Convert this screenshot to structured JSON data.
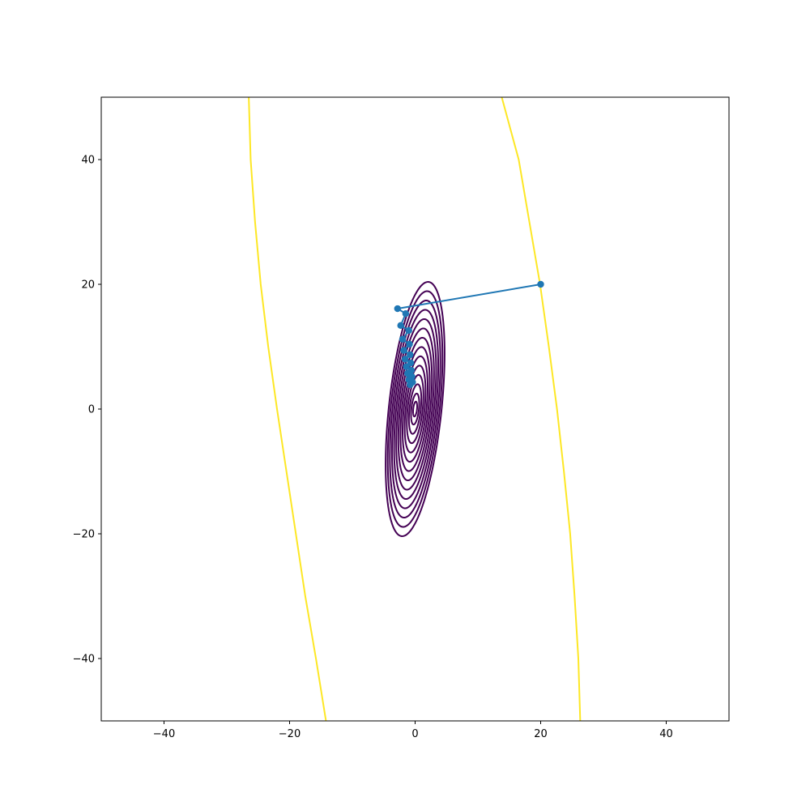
{
  "chart_data": {
    "type": "line",
    "title": "",
    "xlabel": "",
    "ylabel": "",
    "xlim": [
      -50,
      50
    ],
    "ylim": [
      -50,
      50
    ],
    "grid": false,
    "legend": "none",
    "x_ticks": [
      -40,
      -20,
      0,
      20,
      40
    ],
    "y_ticks": [
      -40,
      -20,
      0,
      20,
      40
    ],
    "x_tick_labels": [
      "−40",
      "−20",
      "0",
      "20",
      "40"
    ],
    "y_tick_labels": [
      "−40",
      "−20",
      "0",
      "20",
      "40"
    ],
    "colors": {
      "path": "#1f77b4",
      "inner_contours": "#440154",
      "outer_contour": "#fde725",
      "axes": "#000000"
    },
    "contours": {
      "center": [
        0,
        0
      ],
      "inner_levels_semi_axes": [
        [
          4.2,
          20.5
        ],
        [
          3.9,
          19.0
        ],
        [
          3.6,
          17.5
        ],
        [
          3.3,
          16.0
        ],
        [
          3.0,
          14.5
        ],
        [
          2.7,
          13.0
        ],
        [
          2.4,
          11.5
        ],
        [
          2.1,
          10.0
        ],
        [
          1.8,
          8.5
        ],
        [
          1.5,
          7.0
        ],
        [
          1.2,
          5.5
        ],
        [
          0.9,
          4.0
        ],
        [
          0.6,
          2.5
        ],
        [
          0.3,
          1.2
        ]
      ],
      "outer_level_left": [
        [
          -26.5,
          50
        ],
        [
          -26.2,
          40
        ],
        [
          -25.5,
          30
        ],
        [
          -24.6,
          20
        ],
        [
          -23.4,
          10
        ],
        [
          -22,
          0
        ],
        [
          -20.5,
          -10
        ],
        [
          -19,
          -20
        ],
        [
          -17.5,
          -30
        ],
        [
          -15.8,
          -40
        ],
        [
          -14.2,
          -50
        ]
      ],
      "outer_level_right": [
        [
          13.8,
          50
        ],
        [
          16.5,
          40
        ],
        [
          18.2,
          30
        ],
        [
          19.9,
          20
        ],
        [
          21.3,
          10
        ],
        [
          22.6,
          0
        ],
        [
          23.7,
          -10
        ],
        [
          24.7,
          -20
        ],
        [
          25.4,
          -30
        ],
        [
          26.0,
          -40
        ],
        [
          26.3,
          -50
        ]
      ]
    },
    "series": [
      {
        "x": [
          20.0,
          -2.8,
          -1.5,
          -2.3,
          -1.0,
          -2.0,
          -0.9,
          -1.8,
          -0.8,
          -1.6,
          -0.7,
          -1.4,
          -0.6,
          -1.2,
          -0.5,
          -1.0,
          -0.4,
          -0.8
        ],
        "y": [
          20.0,
          16.1,
          15.3,
          13.4,
          12.6,
          11.2,
          10.4,
          9.4,
          8.7,
          8.0,
          7.4,
          6.8,
          6.2,
          5.7,
          5.2,
          4.7,
          4.3,
          3.9
        ]
      }
    ]
  }
}
